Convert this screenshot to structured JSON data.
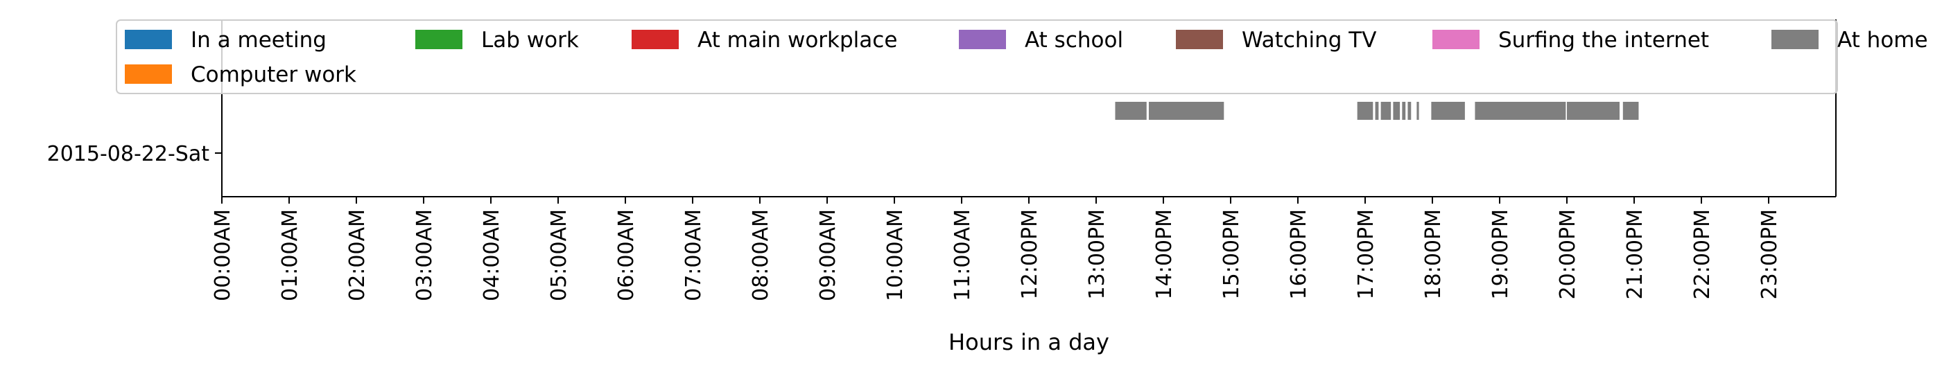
{
  "chart_data": {
    "type": "gantt",
    "xlabel": "Hours in a day",
    "ylabel": "",
    "xlim": [
      0,
      24
    ],
    "grid": false,
    "legend_placement": "top",
    "categories": [
      "2015-08-22-Sat"
    ],
    "x_tick_labels": [
      "00:00AM",
      "01:00AM",
      "02:00AM",
      "03:00AM",
      "04:00AM",
      "05:00AM",
      "06:00AM",
      "07:00AM",
      "08:00AM",
      "09:00AM",
      "10:00AM",
      "11:00AM",
      "12:00PM",
      "13:00PM",
      "14:00PM",
      "15:00PM",
      "16:00PM",
      "17:00PM",
      "18:00PM",
      "19:00PM",
      "20:00PM",
      "21:00PM",
      "22:00PM",
      "23:00PM"
    ],
    "series": [
      {
        "name": "In a meeting",
        "color": "#1f77b4",
        "intervals": []
      },
      {
        "name": "Computer work",
        "color": "#ff7f0e",
        "intervals": []
      },
      {
        "name": "Lab work",
        "color": "#2ca02c",
        "intervals": []
      },
      {
        "name": "At main workplace",
        "color": "#d62728",
        "intervals": []
      },
      {
        "name": "At school",
        "color": "#9467bd",
        "intervals": []
      },
      {
        "name": "Watching TV",
        "color": "#8c564b",
        "intervals": []
      },
      {
        "name": "Surfing the internet",
        "color": "#e377c2",
        "intervals": []
      },
      {
        "name": "At home",
        "color": "#7f7f7f",
        "intervals": [
          [
            "13:17",
            "13:45"
          ],
          [
            "13:47",
            "14:54"
          ],
          [
            "16:53",
            "17:07"
          ],
          [
            "17:09",
            "17:12"
          ],
          [
            "17:14",
            "17:23"
          ],
          [
            "17:25",
            "17:31"
          ],
          [
            "17:33",
            "17:36"
          ],
          [
            "17:38",
            "17:41"
          ],
          [
            "17:46",
            "17:48"
          ],
          [
            "17:59",
            "18:29"
          ],
          [
            "18:38",
            "19:59"
          ],
          [
            "20:00",
            "20:47"
          ],
          [
            "20:50",
            "21:04"
          ]
        ]
      }
    ]
  }
}
